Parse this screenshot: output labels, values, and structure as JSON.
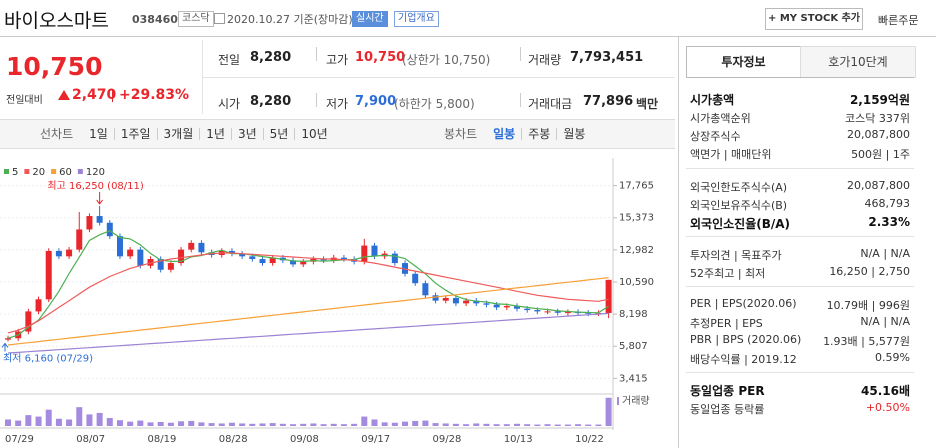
{
  "header": {
    "name": "바이오스마트",
    "code": "038460",
    "market": "코스닥",
    "date": "2020.10.27 기준(장마감)",
    "realtime": "실시간",
    "overview": "기업개요",
    "mystock": "+ MY STOCK 추가",
    "quick_order": "빠른주문"
  },
  "price": {
    "current": "10,750",
    "change_label": "전일대비",
    "change": "2,470",
    "change_pct": "+29.83%"
  },
  "summary": [
    {
      "label": "전일",
      "value": "8,280"
    },
    {
      "label": "고가",
      "value": "10,750",
      "note": "(상한가 10,750)"
    },
    {
      "label": "거래량",
      "value": "7,793,451"
    },
    {
      "label": "시가",
      "value": "8,280"
    },
    {
      "label": "저가",
      "value": "7,900",
      "note": "(하한가 5,800)"
    },
    {
      "label": "거래대금",
      "value": "77,896",
      "unit": "백만"
    }
  ],
  "tabs": {
    "line_chart": "선차트",
    "periods": [
      "1일",
      "1주일",
      "3개월",
      "1년",
      "3년",
      "5년",
      "10년"
    ],
    "candle_chart": "봉차트",
    "candle_periods": [
      "일봉",
      "주봉",
      "월봉"
    ]
  },
  "invest": {
    "tabs": [
      "투자정보",
      "호가10단계"
    ],
    "rows": [
      {
        "label": "시가총액",
        "value": "2,159억원"
      },
      {
        "label": "시가총액순위",
        "value": "코스닥 337위"
      },
      {
        "label": "상장주식수",
        "value": "20,087,800"
      },
      {
        "label": "액면가 | 매매단위",
        "value": "500원 | 1주"
      },
      {
        "label": "외국인한도주식수(A)",
        "value": "20,087,800"
      },
      {
        "label": "외국인보유주식수(B)",
        "value": "468,793"
      },
      {
        "label": "외국인소진율(B/A)",
        "value": "2.33%"
      },
      {
        "label": "투자의견 | 목표주가",
        "value": "N/A | N/A"
      },
      {
        "label": "52주최고 | 최저",
        "value": "16,250 | 2,750"
      },
      {
        "label": "PER | EPS(2020.06)",
        "value": "10.79배 | 996원"
      },
      {
        "label": "추정PER | EPS",
        "value": "N/A | N/A"
      },
      {
        "label": "PBR | BPS (2020.06)",
        "value": "1.93배 | 5,577원"
      },
      {
        "label": "배당수익률 | 2019.12",
        "value": "0.59%"
      },
      {
        "label": "동일업종 PER",
        "value": "45.16배"
      },
      {
        "label": "동일업종 등락률",
        "value": "+0.50%"
      }
    ]
  },
  "chart_data": {
    "type": "candlestick",
    "categories": [
      "07/29",
      null,
      null,
      null,
      null,
      null,
      null,
      "08/07",
      null,
      null,
      null,
      null,
      null,
      null,
      "08/19",
      null,
      null,
      null,
      null,
      null,
      null,
      "08/28",
      null,
      null,
      null,
      null,
      null,
      null,
      "09/08",
      null,
      null,
      null,
      null,
      null,
      null,
      "09/17",
      null,
      null,
      null,
      null,
      null,
      null,
      "09/28",
      null,
      null,
      null,
      null,
      null,
      null,
      "10/13",
      null,
      null,
      null,
      null,
      null,
      null,
      "10/22",
      null,
      null,
      null
    ],
    "open": [
      6300,
      6400,
      6900,
      8400,
      9300,
      12900,
      12500,
      13000,
      14500,
      15500,
      15000,
      14000,
      12500,
      13000,
      11800,
      12300,
      11500,
      12000,
      13000,
      13500,
      12800,
      12600,
      12900,
      12700,
      12500,
      12300,
      12000,
      12400,
      12200,
      11900,
      12100,
      12300,
      12200,
      12400,
      12300,
      12100,
      13300,
      12500,
      12700,
      12000,
      11200,
      10500,
      9600,
      9200,
      9400,
      9000,
      9200,
      9000,
      8900,
      8700,
      8800,
      8600,
      8500,
      8400,
      8400,
      8300,
      8350,
      8300,
      8250,
      8280
    ],
    "high": [
      6600,
      7100,
      8600,
      9500,
      13100,
      13100,
      13200,
      15800,
      15700,
      16250,
      15200,
      14200,
      13200,
      13200,
      12500,
      12500,
      12200,
      13200,
      13700,
      13700,
      13000,
      13100,
      13100,
      12900,
      12700,
      12500,
      12600,
      12600,
      12400,
      12300,
      12500,
      12500,
      12600,
      12600,
      12500,
      13800,
      13500,
      12900,
      12900,
      12200,
      11400,
      10700,
      9800,
      9600,
      9600,
      9400,
      9400,
      9200,
      9100,
      9000,
      9000,
      8800,
      8700,
      8600,
      8600,
      8550,
      8550,
      8500,
      8480,
      10750
    ],
    "low": [
      6160,
      6200,
      6700,
      8200,
      9100,
      12300,
      12300,
      12800,
      14300,
      14800,
      13800,
      12300,
      12300,
      11600,
      11600,
      11300,
      11300,
      11800,
      12800,
      12600,
      12400,
      12400,
      12500,
      12300,
      12100,
      11800,
      11800,
      12000,
      11700,
      11700,
      11900,
      12000,
      12000,
      12100,
      11900,
      11900,
      12300,
      12300,
      11800,
      11000,
      10300,
      9400,
      9000,
      9000,
      8800,
      8800,
      8800,
      8700,
      8500,
      8500,
      8400,
      8300,
      8200,
      8200,
      8100,
      8100,
      8100,
      8050,
      8050,
      7900
    ],
    "close": [
      6400,
      6900,
      8400,
      9300,
      12900,
      12500,
      13000,
      14500,
      15500,
      15000,
      14000,
      12500,
      13000,
      11800,
      12300,
      11500,
      12000,
      13000,
      13500,
      12800,
      12600,
      12900,
      12700,
      12500,
      12300,
      12000,
      12400,
      12200,
      11900,
      12100,
      12300,
      12200,
      12400,
      12300,
      12100,
      13300,
      12500,
      12700,
      12000,
      11200,
      10500,
      9600,
      9200,
      9400,
      9000,
      9200,
      9000,
      8900,
      8700,
      8800,
      8600,
      8500,
      8400,
      8400,
      8300,
      8350,
      8300,
      8250,
      8280,
      10750
    ],
    "volume": [
      1800000,
      1500000,
      3000000,
      2600000,
      4500000,
      2000000,
      1800000,
      5200000,
      3200000,
      3600000,
      2200000,
      1600000,
      1200000,
      1500000,
      1000000,
      1100000,
      900000,
      1300000,
      1400000,
      1000000,
      800000,
      700000,
      900000,
      700000,
      600000,
      700000,
      800000,
      600000,
      500000,
      600000,
      700000,
      500000,
      600000,
      500000,
      600000,
      2600000,
      1800000,
      1000000,
      900000,
      1200000,
      1400000,
      1500000,
      800000,
      700000,
      600000,
      500000,
      700000,
      600000,
      500000,
      500000,
      600000,
      500000,
      400000,
      500000,
      400000,
      400000,
      500000,
      400000,
      400000,
      7793451
    ],
    "series": [
      {
        "name": "5",
        "color": "#4caf50",
        "values": [
          6400,
          6650,
          7230,
          7750,
          8780,
          9900,
          11220,
          12440,
          13680,
          14100,
          14400,
          13900,
          13800,
          13360,
          12720,
          12220,
          12120,
          12120,
          12460,
          12560,
          12780,
          12960,
          12700,
          12700,
          12600,
          12480,
          12380,
          12280,
          12160,
          12120,
          12180,
          12140,
          12180,
          12240,
          12260,
          12460,
          12520,
          12580,
          12520,
          12340,
          11780,
          11200,
          10500,
          9980,
          9540,
          9280,
          9160,
          9100,
          8960,
          8920,
          8800,
          8700,
          8600,
          8540,
          8440,
          8390,
          8350,
          8320,
          8296,
          8786
        ]
      },
      {
        "name": "20",
        "color": "#f05a5a",
        "values": [
          6800,
          7000,
          7300,
          7700,
          8200,
          8700,
          9200,
          9700,
          10200,
          10600,
          11000,
          11300,
          11600,
          11800,
          12000,
          12150,
          12300,
          12400,
          12500,
          12600,
          12700,
          12750,
          12750,
          12700,
          12650,
          12600,
          12550,
          12500,
          12450,
          12400,
          12350,
          12300,
          12300,
          12250,
          12200,
          12100,
          12000,
          11850,
          11700,
          11550,
          11400,
          11250,
          11100,
          10950,
          10800,
          10650,
          10500,
          10350,
          10200,
          10050,
          9900,
          9750,
          9600,
          9500,
          9400,
          9300,
          9250,
          9200,
          9150,
          9300
        ]
      },
      {
        "name": "60",
        "color": "#f7a035",
        "values": [
          5900,
          5985,
          6070,
          6155,
          6240,
          6325,
          6410,
          6495,
          6580,
          6665,
          6750,
          6835,
          6920,
          7005,
          7090,
          7175,
          7260,
          7345,
          7430,
          7515,
          7600,
          7685,
          7770,
          7855,
          7940,
          8025,
          8110,
          8195,
          8280,
          8365,
          8450,
          8535,
          8620,
          8705,
          8790,
          8875,
          8960,
          9045,
          9130,
          9215,
          9300,
          9385,
          9470,
          9555,
          9640,
          9725,
          9810,
          9895,
          9980,
          10065,
          10150,
          10235,
          10320,
          10405,
          10490,
          10575,
          10660,
          10745,
          10830,
          10915
        ]
      },
      {
        "name": "120",
        "color": "#9b82d4",
        "values": [
          5300,
          5350,
          5400,
          5450,
          5500,
          5550,
          5600,
          5650,
          5700,
          5750,
          5800,
          5850,
          5900,
          5950,
          6000,
          6050,
          6100,
          6150,
          6200,
          6250,
          6300,
          6350,
          6400,
          6450,
          6500,
          6550,
          6600,
          6650,
          6700,
          6750,
          6800,
          6850,
          6900,
          6950,
          7000,
          7050,
          7100,
          7150,
          7200,
          7250,
          7300,
          7350,
          7400,
          7450,
          7500,
          7550,
          7600,
          7650,
          7700,
          7750,
          7800,
          7850,
          7900,
          7950,
          8000,
          8050,
          8100,
          8150,
          8200,
          8250
        ]
      }
    ],
    "up_color": "#e8262b",
    "down_color": "#2b6fd6",
    "volume_color": "#a48be0",
    "ylim": [
      2400,
      19300
    ],
    "yticks": [
      {
        "value": 17765,
        "label": "17,765"
      },
      {
        "value": 15373,
        "label": "15,373"
      },
      {
        "value": 12982,
        "label": "12,982"
      },
      {
        "value": 10590,
        "label": "10,590"
      },
      {
        "value": 8198,
        "label": "8,198"
      },
      {
        "value": 5807,
        "label": "5,807"
      },
      {
        "value": 3415,
        "label": "3,415"
      }
    ],
    "grid": true,
    "volume_ylim": [
      0,
      8000000
    ],
    "high_label": "최고 16,250 (08/11)",
    "low_label": "최저 6,160 (07/29)",
    "volume_label": "거래량"
  }
}
